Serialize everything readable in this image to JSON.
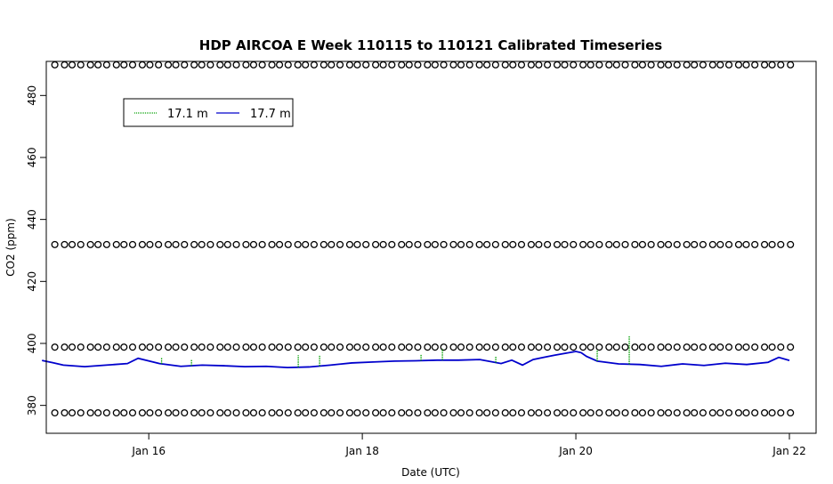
{
  "chart_data": {
    "type": "line",
    "title": "HDP AIRCOA E  Week 110115 to 110121  Calibrated Timeseries",
    "xlabel": "Date (UTC)",
    "ylabel": "CO2 (ppm)",
    "x_unit": "days (January 2011)",
    "xlim": [
      15.04,
      22.25
    ],
    "ylim": [
      371,
      491
    ],
    "x_ticks": [
      {
        "value": 16,
        "label": "Jan 16"
      },
      {
        "value": 18,
        "label": "Jan 18"
      },
      {
        "value": 20,
        "label": "Jan 20"
      },
      {
        "value": 22,
        "label": "Jan 22"
      }
    ],
    "y_ticks": [
      380,
      400,
      420,
      440,
      460,
      480
    ],
    "legend": {
      "placement": "top-left",
      "entries": [
        {
          "label": "17.1 m",
          "color": "#00a000"
        },
        {
          "label": "17.7 m",
          "color": "#0000cc"
        }
      ]
    },
    "calibration_levels": [
      489.9,
      431.9,
      398.8,
      377.6
    ],
    "calibration_x_range": [
      15.12,
      22.0
    ],
    "series": [
      {
        "name": "17.7 m",
        "color": "#0000cc",
        "x": [
          15.0,
          15.1,
          15.2,
          15.4,
          15.6,
          15.8,
          15.9,
          16.1,
          16.3,
          16.5,
          16.7,
          16.9,
          17.1,
          17.3,
          17.5,
          17.7,
          17.9,
          18.1,
          18.3,
          18.5,
          18.7,
          18.9,
          19.1,
          19.3,
          19.4,
          19.5,
          19.6,
          19.7,
          19.8,
          19.9,
          20.0,
          20.05,
          20.1,
          20.2,
          20.4,
          20.6,
          20.8,
          21.0,
          21.2,
          21.4,
          21.6,
          21.8,
          21.9,
          22.0
        ],
        "values": [
          394.5,
          393.8,
          393.0,
          392.5,
          393.0,
          393.5,
          395.2,
          393.5,
          392.6,
          393.0,
          392.8,
          392.5,
          392.6,
          392.2,
          392.4,
          393.0,
          393.7,
          394.0,
          394.3,
          394.4,
          394.6,
          394.6,
          394.8,
          393.5,
          394.6,
          393.0,
          394.8,
          395.5,
          396.2,
          396.8,
          397.4,
          397.0,
          395.8,
          394.3,
          393.4,
          393.2,
          392.6,
          393.4,
          392.9,
          393.6,
          393.2,
          393.9,
          395.5,
          394.5
        ]
      },
      {
        "name": "17.1 m",
        "color": "#00a000",
        "x": [
          16.12,
          16.4,
          17.4,
          17.6,
          18.55,
          18.75,
          19.25,
          20.2,
          20.5
        ],
        "values": [
          395.5,
          394.8,
          396.2,
          396.0,
          396.5,
          398.3,
          395.8,
          398.0,
          402.3
        ]
      }
    ]
  }
}
